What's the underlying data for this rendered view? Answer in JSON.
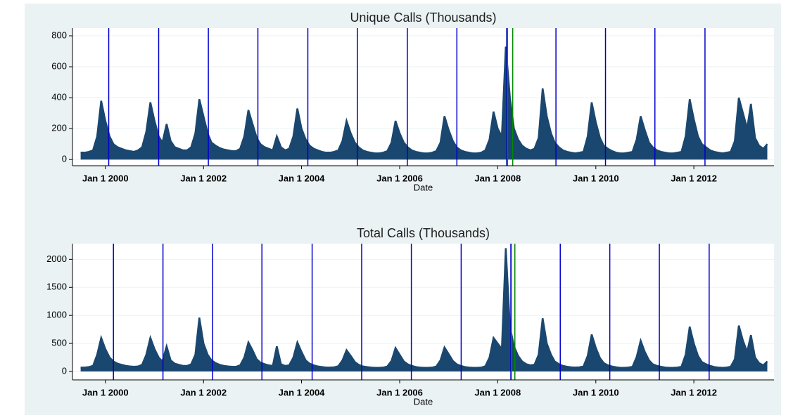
{
  "chart_data": [
    {
      "type": "area",
      "title": "Unique Calls (Thousands)",
      "xlabel": "Date",
      "x": [
        "1999-07-01",
        "1999-08-01",
        "1999-09-01",
        "1999-10-01",
        "1999-11-01",
        "1999-12-01",
        "2000-01-01",
        "2000-02-01",
        "2000-03-01",
        "2000-04-01",
        "2000-05-01",
        "2000-06-01",
        "2000-07-01",
        "2000-08-01",
        "2000-09-01",
        "2000-10-01",
        "2000-11-01",
        "2000-12-01",
        "2001-01-01",
        "2001-02-01",
        "2001-03-01",
        "2001-04-01",
        "2001-05-01",
        "2001-06-01",
        "2001-07-01",
        "2001-08-01",
        "2001-09-01",
        "2001-10-01",
        "2001-11-01",
        "2001-12-01",
        "2002-01-01",
        "2002-02-01",
        "2002-03-01",
        "2002-04-01",
        "2002-05-01",
        "2002-06-01",
        "2002-07-01",
        "2002-08-01",
        "2002-09-01",
        "2002-10-01",
        "2002-11-01",
        "2002-12-01",
        "2003-01-01",
        "2003-02-01",
        "2003-03-01",
        "2003-04-01",
        "2003-05-01",
        "2003-06-01",
        "2003-07-01",
        "2003-08-01",
        "2003-09-01",
        "2003-10-01",
        "2003-11-01",
        "2003-12-01",
        "2004-01-01",
        "2004-02-01",
        "2004-03-01",
        "2004-04-01",
        "2004-05-01",
        "2004-06-01",
        "2004-07-01",
        "2004-08-01",
        "2004-09-01",
        "2004-10-01",
        "2004-11-01",
        "2004-12-01",
        "2005-01-01",
        "2005-02-01",
        "2005-03-01",
        "2005-04-01",
        "2005-05-01",
        "2005-06-01",
        "2005-07-01",
        "2005-08-01",
        "2005-09-01",
        "2005-10-01",
        "2005-11-01",
        "2005-12-01",
        "2006-01-01",
        "2006-02-01",
        "2006-03-01",
        "2006-04-01",
        "2006-05-01",
        "2006-06-01",
        "2006-07-01",
        "2006-08-01",
        "2006-09-01",
        "2006-10-01",
        "2006-11-01",
        "2006-12-01",
        "2007-01-01",
        "2007-02-01",
        "2007-03-01",
        "2007-04-01",
        "2007-05-01",
        "2007-06-01",
        "2007-07-01",
        "2007-08-01",
        "2007-09-01",
        "2007-10-01",
        "2007-11-01",
        "2007-12-01",
        "2008-01-01",
        "2008-02-01",
        "2008-03-01",
        "2008-04-01",
        "2008-05-01",
        "2008-06-01",
        "2008-07-01",
        "2008-08-01",
        "2008-09-01",
        "2008-10-01",
        "2008-11-01",
        "2008-12-01",
        "2009-01-01",
        "2009-02-01",
        "2009-03-01",
        "2009-04-01",
        "2009-05-01",
        "2009-06-01",
        "2009-07-01",
        "2009-08-01",
        "2009-09-01",
        "2009-10-01",
        "2009-11-01",
        "2009-12-01",
        "2010-01-01",
        "2010-02-01",
        "2010-03-01",
        "2010-04-01",
        "2010-05-01",
        "2010-06-01",
        "2010-07-01",
        "2010-08-01",
        "2010-09-01",
        "2010-10-01",
        "2010-11-01",
        "2010-12-01",
        "2011-01-01",
        "2011-02-01",
        "2011-03-01",
        "2011-04-01",
        "2011-05-01",
        "2011-06-01",
        "2011-07-01",
        "2011-08-01",
        "2011-09-01",
        "2011-10-01",
        "2011-11-01",
        "2011-12-01",
        "2012-01-01",
        "2012-02-01",
        "2012-03-01",
        "2012-04-01",
        "2012-05-01",
        "2012-06-01",
        "2012-07-01",
        "2012-08-01",
        "2012-09-01",
        "2012-10-01",
        "2012-11-01",
        "2012-12-01",
        "2013-01-01",
        "2013-02-01",
        "2013-03-01",
        "2013-04-01",
        "2013-05-01",
        "2013-06-01",
        "2013-07-01"
      ],
      "series": [
        {
          "color": "#1a476f",
          "values": [
            45,
            45,
            50,
            60,
            150,
            380,
            250,
            150,
            100,
            80,
            70,
            60,
            55,
            50,
            60,
            80,
            180,
            370,
            250,
            150,
            110,
            230,
            120,
            80,
            70,
            60,
            60,
            80,
            170,
            390,
            280,
            170,
            110,
            90,
            75,
            65,
            60,
            55,
            55,
            70,
            150,
            320,
            230,
            140,
            100,
            80,
            70,
            60,
            150,
            80,
            60,
            70,
            150,
            330,
            200,
            130,
            90,
            70,
            60,
            50,
            45,
            45,
            50,
            60,
            120,
            250,
            170,
            110,
            80,
            60,
            50,
            45,
            40,
            40,
            45,
            55,
            110,
            250,
            170,
            110,
            80,
            60,
            50,
            45,
            40,
            40,
            45,
            55,
            110,
            280,
            190,
            120,
            80,
            60,
            50,
            45,
            40,
            40,
            45,
            60,
            130,
            310,
            200,
            150,
            730,
            400,
            200,
            130,
            90,
            70,
            60,
            70,
            140,
            460,
            280,
            170,
            110,
            80,
            60,
            50,
            45,
            40,
            45,
            50,
            150,
            370,
            240,
            140,
            90,
            70,
            55,
            45,
            40,
            40,
            45,
            50,
            130,
            280,
            190,
            110,
            80,
            60,
            50,
            45,
            40,
            40,
            45,
            50,
            150,
            390,
            260,
            150,
            100,
            80,
            60,
            50,
            45,
            40,
            45,
            50,
            120,
            400,
            300,
            200,
            360,
            140,
            90,
            70,
            100
          ]
        }
      ],
      "vlines": [
        {
          "x": "2000-01-26",
          "color": "#0000cc"
        },
        {
          "x": "2001-02-01",
          "color": "#0000cc"
        },
        {
          "x": "2002-02-06",
          "color": "#0000cc"
        },
        {
          "x": "2003-02-10",
          "color": "#0000cc"
        },
        {
          "x": "2004-02-17",
          "color": "#0000cc"
        },
        {
          "x": "2005-02-20",
          "color": "#0000cc"
        },
        {
          "x": "2006-02-27",
          "color": "#0000cc"
        },
        {
          "x": "2007-03-03",
          "color": "#0000cc"
        },
        {
          "x": "2008-03-08",
          "color": "#0000cc"
        },
        {
          "x": "2009-03-10",
          "color": "#0000cc"
        },
        {
          "x": "2010-03-14",
          "color": "#0000cc"
        },
        {
          "x": "2011-03-17",
          "color": "#0000cc"
        },
        {
          "x": "2012-03-24",
          "color": "#0000cc"
        },
        {
          "x": "2008-03-14",
          "color": "#008800"
        },
        {
          "x": "2008-04-22",
          "color": "#008800"
        }
      ],
      "xlim": [
        "1999-05-01",
        "2013-08-20"
      ],
      "xticks": [
        {
          "value": "2000-01-01",
          "label": "Jan 1 2000"
        },
        {
          "value": "2002-01-01",
          "label": "Jan 1 2002"
        },
        {
          "value": "2004-01-01",
          "label": "Jan 1 2004"
        },
        {
          "value": "2006-01-01",
          "label": "Jan 1 2006"
        },
        {
          "value": "2008-01-01",
          "label": "Jan 1 2008"
        },
        {
          "value": "2010-01-01",
          "label": "Jan 1 2010"
        },
        {
          "value": "2012-01-01",
          "label": "Jan 1 2012"
        }
      ],
      "ylim": [
        -40,
        850
      ],
      "yticks": [
        0,
        200,
        400,
        600,
        800
      ],
      "grid": true
    },
    {
      "type": "area",
      "title": "Total Calls (Thousands)",
      "xlabel": "Date",
      "x": [
        "1999-07-01",
        "1999-08-01",
        "1999-09-01",
        "1999-10-01",
        "1999-11-01",
        "1999-12-01",
        "2000-01-01",
        "2000-02-01",
        "2000-03-01",
        "2000-04-01",
        "2000-05-01",
        "2000-06-01",
        "2000-07-01",
        "2000-08-01",
        "2000-09-01",
        "2000-10-01",
        "2000-11-01",
        "2000-12-01",
        "2001-01-01",
        "2001-02-01",
        "2001-03-01",
        "2001-04-01",
        "2001-05-01",
        "2001-06-01",
        "2001-07-01",
        "2001-08-01",
        "2001-09-01",
        "2001-10-01",
        "2001-11-01",
        "2001-12-01",
        "2002-01-01",
        "2002-02-01",
        "2002-03-01",
        "2002-04-01",
        "2002-05-01",
        "2002-06-01",
        "2002-07-01",
        "2002-08-01",
        "2002-09-01",
        "2002-10-01",
        "2002-11-01",
        "2002-12-01",
        "2003-01-01",
        "2003-02-01",
        "2003-03-01",
        "2003-04-01",
        "2003-05-01",
        "2003-06-01",
        "2003-07-01",
        "2003-08-01",
        "2003-09-01",
        "2003-10-01",
        "2003-11-01",
        "2003-12-01",
        "2004-01-01",
        "2004-02-01",
        "2004-03-01",
        "2004-04-01",
        "2004-05-01",
        "2004-06-01",
        "2004-07-01",
        "2004-08-01",
        "2004-09-01",
        "2004-10-01",
        "2004-11-01",
        "2004-12-01",
        "2005-01-01",
        "2005-02-01",
        "2005-03-01",
        "2005-04-01",
        "2005-05-01",
        "2005-06-01",
        "2005-07-01",
        "2005-08-01",
        "2005-09-01",
        "2005-10-01",
        "2005-11-01",
        "2005-12-01",
        "2006-01-01",
        "2006-02-01",
        "2006-03-01",
        "2006-04-01",
        "2006-05-01",
        "2006-06-01",
        "2006-07-01",
        "2006-08-01",
        "2006-09-01",
        "2006-10-01",
        "2006-11-01",
        "2006-12-01",
        "2007-01-01",
        "2007-02-01",
        "2007-03-01",
        "2007-04-01",
        "2007-05-01",
        "2007-06-01",
        "2007-07-01",
        "2007-08-01",
        "2007-09-01",
        "2007-10-01",
        "2007-11-01",
        "2007-12-01",
        "2008-01-01",
        "2008-02-01",
        "2008-03-01",
        "2008-04-01",
        "2008-05-01",
        "2008-06-01",
        "2008-07-01",
        "2008-08-01",
        "2008-09-01",
        "2008-10-01",
        "2008-11-01",
        "2008-12-01",
        "2009-01-01",
        "2009-02-01",
        "2009-03-01",
        "2009-04-01",
        "2009-05-01",
        "2009-06-01",
        "2009-07-01",
        "2009-08-01",
        "2009-09-01",
        "2009-10-01",
        "2009-11-01",
        "2009-12-01",
        "2010-01-01",
        "2010-02-01",
        "2010-03-01",
        "2010-04-01",
        "2010-05-01",
        "2010-06-01",
        "2010-07-01",
        "2010-08-01",
        "2010-09-01",
        "2010-10-01",
        "2010-11-01",
        "2010-12-01",
        "2011-01-01",
        "2011-02-01",
        "2011-03-01",
        "2011-04-01",
        "2011-05-01",
        "2011-06-01",
        "2011-07-01",
        "2011-08-01",
        "2011-09-01",
        "2011-10-01",
        "2011-11-01",
        "2011-12-01",
        "2012-01-01",
        "2012-02-01",
        "2012-03-01",
        "2012-04-01",
        "2012-05-01",
        "2012-06-01",
        "2012-07-01",
        "2012-08-01",
        "2012-09-01",
        "2012-10-01",
        "2012-11-01",
        "2012-12-01",
        "2013-01-01",
        "2013-02-01",
        "2013-03-01",
        "2013-04-01",
        "2013-05-01",
        "2013-06-01",
        "2013-07-01"
      ],
      "series": [
        {
          "color": "#1a476f",
          "values": [
            70,
            70,
            80,
            100,
            300,
            600,
            400,
            250,
            180,
            140,
            120,
            100,
            90,
            85,
            90,
            120,
            300,
            600,
            400,
            250,
            180,
            450,
            200,
            140,
            120,
            100,
            100,
            130,
            300,
            960,
            500,
            300,
            200,
            150,
            120,
            100,
            90,
            85,
            85,
            110,
            250,
            520,
            380,
            220,
            160,
            130,
            110,
            100,
            450,
            130,
            100,
            110,
            250,
            520,
            350,
            200,
            140,
            110,
            90,
            80,
            70,
            70,
            75,
            95,
            200,
            380,
            280,
            170,
            120,
            90,
            80,
            70,
            65,
            65,
            70,
            90,
            190,
            420,
            300,
            180,
            130,
            100,
            80,
            70,
            65,
            65,
            70,
            90,
            200,
            430,
            310,
            190,
            130,
            100,
            80,
            70,
            65,
            65,
            70,
            95,
            250,
            600,
            500,
            400,
            2200,
            800,
            450,
            280,
            180,
            130,
            110,
            120,
            300,
            950,
            500,
            300,
            180,
            130,
            100,
            85,
            75,
            70,
            75,
            90,
            280,
            660,
            420,
            240,
            150,
            110,
            90,
            75,
            65,
            65,
            70,
            85,
            260,
            550,
            350,
            200,
            130,
            100,
            85,
            70,
            65,
            65,
            70,
            85,
            300,
            800,
            500,
            280,
            170,
            130,
            100,
            80,
            70,
            65,
            70,
            85,
            220,
            820,
            550,
            350,
            650,
            250,
            150,
            110,
            180
          ]
        }
      ],
      "vlines": [
        {
          "x": "2000-03-01",
          "color": "#0000cc"
        },
        {
          "x": "2001-03-05",
          "color": "#0000cc"
        },
        {
          "x": "2002-03-10",
          "color": "#0000cc"
        },
        {
          "x": "2003-03-12",
          "color": "#0000cc"
        },
        {
          "x": "2004-03-20",
          "color": "#0000cc"
        },
        {
          "x": "2005-03-24",
          "color": "#0000cc"
        },
        {
          "x": "2006-03-29",
          "color": "#0000cc"
        },
        {
          "x": "2007-04-04",
          "color": "#0000cc"
        },
        {
          "x": "2008-04-08",
          "color": "#0000cc"
        },
        {
          "x": "2009-04-11",
          "color": "#0000cc"
        },
        {
          "x": "2010-04-15",
          "color": "#0000cc"
        },
        {
          "x": "2011-04-19",
          "color": "#0000cc"
        },
        {
          "x": "2012-04-24",
          "color": "#0000cc"
        },
        {
          "x": "2008-04-12",
          "color": "#008800"
        },
        {
          "x": "2008-05-08",
          "color": "#008800"
        }
      ],
      "xlim": [
        "1999-05-01",
        "2013-08-20"
      ],
      "xticks": [
        {
          "value": "2000-01-01",
          "label": "Jan 1 2000"
        },
        {
          "value": "2002-01-01",
          "label": "Jan 1 2002"
        },
        {
          "value": "2004-01-01",
          "label": "Jan 1 2004"
        },
        {
          "value": "2006-01-01",
          "label": "Jan 1 2006"
        },
        {
          "value": "2008-01-01",
          "label": "Jan 1 2008"
        },
        {
          "value": "2010-01-01",
          "label": "Jan 1 2010"
        },
        {
          "value": "2012-01-01",
          "label": "Jan 1 2012"
        }
      ],
      "ylim": [
        -150,
        2280
      ],
      "yticks": [
        0,
        500,
        1000,
        1500,
        2000
      ],
      "grid": true
    }
  ]
}
